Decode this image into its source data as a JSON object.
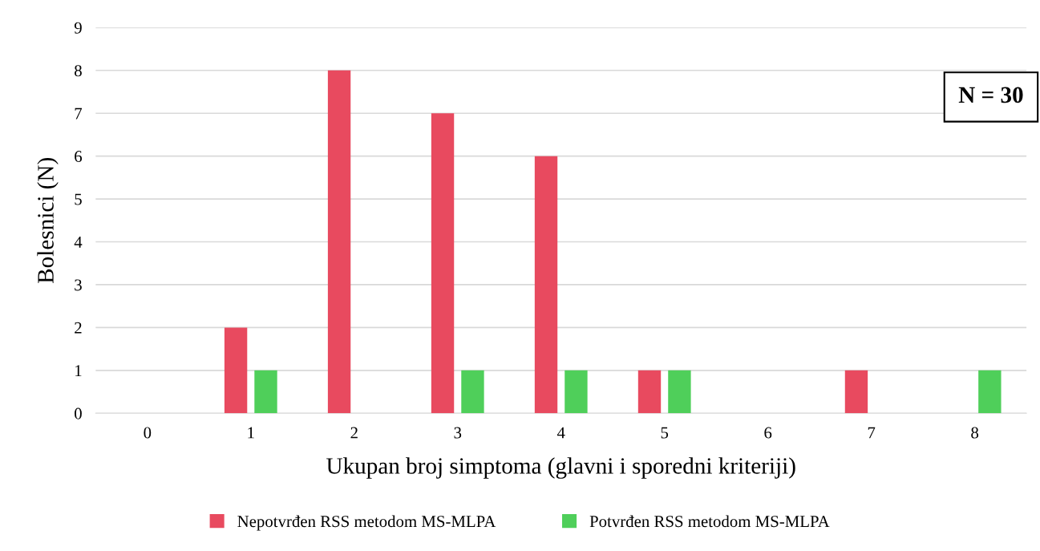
{
  "chart_data": {
    "type": "bar",
    "xlabel": "Ukupan broj simptoma (glavni i sporedni kriteriji)",
    "ylabel": "Bolesnici (N)",
    "categories": [
      "0",
      "1",
      "2",
      "3",
      "4",
      "5",
      "6",
      "7",
      "8"
    ],
    "series": [
      {
        "name": "Nepotvrđen RSS metodom MS-MLPA",
        "color": "#e84a5f",
        "values": [
          0,
          2,
          8,
          7,
          6,
          1,
          0,
          1,
          0
        ]
      },
      {
        "name": "Potvrđen RSS metodom MS-MLPA",
        "color": "#4fcf5a",
        "values": [
          0,
          1,
          0,
          1,
          1,
          1,
          0,
          0,
          1
        ]
      }
    ],
    "ylim": [
      0,
      9
    ],
    "yticks": [
      0,
      1,
      2,
      3,
      4,
      5,
      6,
      7,
      8,
      9
    ],
    "grid": "y",
    "legend": "bottom",
    "annotations": [
      "N = 30"
    ]
  }
}
